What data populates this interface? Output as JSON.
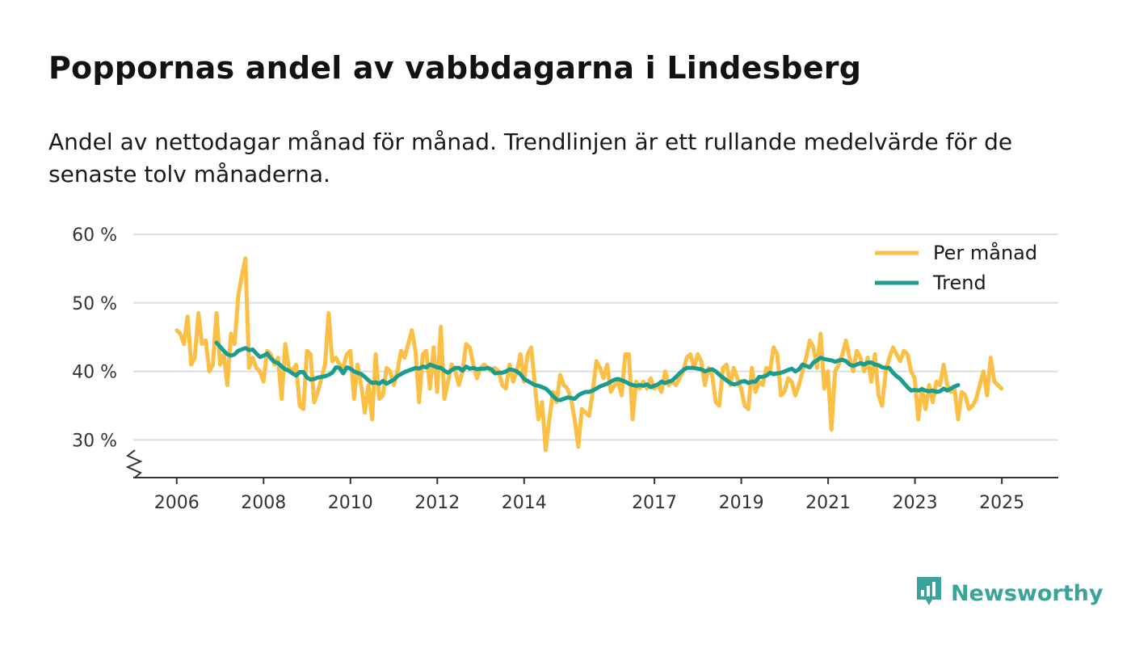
{
  "header": {
    "title": "Poppornas andel av vabbdagarna i Lindesberg",
    "subtitle": "Andel av nettodagar månad för månad. Trendlinjen är ett rullande medelvärde för de senaste tolv månaderna."
  },
  "brand": {
    "name": "Newsworthy",
    "icon": "newsworthy-logo-icon",
    "color": "#3aa39a"
  },
  "colors": {
    "monthly": "#fbbf45",
    "trend": "#1a9c8f",
    "grid": "#dddddd",
    "axis": "#333333"
  },
  "chart_data": {
    "type": "line",
    "title": "Poppornas andel av vabbdagarna i Lindesberg",
    "xlabel": "",
    "ylabel": "",
    "ylim": [
      24.5,
      60
    ],
    "xlim": [
      2005.0,
      2026.3
    ],
    "yticks": [
      30,
      40,
      50,
      60
    ],
    "ytick_labels": [
      "30 %",
      "40 %",
      "50 %",
      "60 %"
    ],
    "xticks": [
      2006,
      2008,
      2010,
      2012,
      2014,
      2017,
      2019,
      2021,
      2023,
      2025
    ],
    "xtick_labels": [
      "2006",
      "2008",
      "2010",
      "2012",
      "2014",
      "2017",
      "2019",
      "2021",
      "2023",
      "2025"
    ],
    "grid": true,
    "legend_position": "top-right",
    "series": [
      {
        "name": "Per månad",
        "x_start": 2006.0,
        "step": 0.0833,
        "values": [
          46.0,
          45.5,
          44.0,
          48.0,
          41.0,
          42.0,
          48.5,
          44.0,
          44.5,
          40.0,
          41.0,
          48.5,
          41.0,
          42.5,
          38.0,
          45.5,
          44.0,
          51.0,
          54.0,
          56.5,
          40.5,
          42.0,
          40.5,
          40.0,
          38.5,
          43.0,
          42.5,
          41.0,
          42.0,
          36.0,
          44.0,
          40.5,
          40.0,
          41.0,
          35.0,
          34.5,
          43.0,
          42.5,
          35.5,
          37.0,
          39.0,
          41.0,
          48.5,
          41.5,
          42.0,
          41.0,
          40.5,
          42.5,
          43.0,
          36.0,
          41.0,
          38.0,
          34.0,
          38.0,
          33.0,
          42.5,
          36.0,
          36.5,
          40.5,
          40.0,
          38.0,
          40.0,
          43.0,
          42.0,
          44.0,
          46.0,
          43.0,
          35.5,
          42.5,
          43.0,
          37.5,
          43.5,
          37.0,
          46.5,
          36.0,
          38.5,
          41.0,
          40.0,
          38.0,
          40.0,
          44.0,
          43.5,
          41.0,
          39.0,
          40.5,
          41.0,
          40.5,
          40.0,
          40.5,
          40.0,
          38.0,
          37.5,
          41.0,
          38.5,
          40.0,
          42.5,
          38.5,
          42.5,
          43.5,
          38.0,
          33.0,
          35.5,
          28.5,
          33.0,
          37.0,
          35.5,
          39.5,
          38.0,
          37.5,
          36.0,
          33.0,
          29.0,
          34.5,
          34.0,
          33.5,
          37.0,
          41.5,
          40.5,
          39.0,
          41.0,
          37.0,
          38.0,
          38.5,
          36.5,
          42.5,
          42.5,
          33.0,
          38.5,
          37.5,
          38.5,
          37.5,
          39.0,
          37.5,
          38.0,
          37.0,
          40.0,
          38.0,
          38.5,
          38.0,
          39.0,
          40.0,
          42.0,
          42.5,
          40.5,
          42.5,
          41.5,
          38.0,
          40.5,
          39.5,
          35.5,
          35.0,
          40.5,
          41.0,
          38.0,
          40.5,
          39.0,
          37.5,
          35.0,
          34.5,
          40.5,
          37.0,
          38.5,
          38.0,
          40.5,
          40.0,
          43.5,
          42.5,
          36.5,
          37.0,
          39.0,
          38.5,
          36.5,
          38.0,
          40.0,
          42.0,
          44.5,
          43.5,
          40.5,
          45.5,
          37.5,
          40.0,
          31.5,
          40.0,
          41.0,
          42.5,
          44.5,
          42.0,
          40.0,
          43.0,
          42.0,
          40.0,
          42.0,
          38.5,
          42.5,
          36.5,
          35.0,
          40.0,
          42.0,
          43.5,
          42.5,
          41.5,
          43.0,
          42.5,
          40.0,
          39.0,
          33.0,
          37.5,
          34.5,
          38.0,
          35.5,
          38.5,
          38.0,
          41.0,
          38.0,
          37.0,
          37.5,
          33.0,
          37.0,
          36.5,
          34.5,
          35.0,
          36.0,
          38.0,
          40.0,
          36.5,
          42.0,
          38.5,
          38.0,
          37.5
        ]
      },
      {
        "name": "Trend",
        "x_start": 2006.917,
        "step": 0.0833,
        "values": [
          44.2,
          43.6,
          43.0,
          42.5,
          42.3,
          42.5,
          43.0,
          43.2,
          43.4,
          43.1,
          43.2,
          42.6,
          42.1,
          42.3,
          42.6,
          41.9,
          41.4,
          41.2,
          40.7,
          40.3,
          40.1,
          39.7,
          39.4,
          39.9,
          39.9,
          39.1,
          38.8,
          38.9,
          39.1,
          39.2,
          39.3,
          39.5,
          39.8,
          40.6,
          40.5,
          39.7,
          40.6,
          40.4,
          40.0,
          39.8,
          39.6,
          39.2,
          38.7,
          38.3,
          38.4,
          38.2,
          38.6,
          38.2,
          38.5,
          38.8,
          39.3,
          39.6,
          39.9,
          40.1,
          40.3,
          40.5,
          40.4,
          40.7,
          40.6,
          41.0,
          40.8,
          40.6,
          40.5,
          40.1,
          39.8,
          40.2,
          40.5,
          40.5,
          40.1,
          40.7,
          40.4,
          40.5,
          40.3,
          40.4,
          40.4,
          40.5,
          40.3,
          39.7,
          39.8,
          39.8,
          40.0,
          40.3,
          40.2,
          40.0,
          39.6,
          38.9,
          38.6,
          38.3,
          38.0,
          37.9,
          37.7,
          37.5,
          37.0,
          36.4,
          35.9,
          35.8,
          36.0,
          36.2,
          36.1,
          36.0,
          36.5,
          36.8,
          37.0,
          37.0,
          37.2,
          37.5,
          37.8,
          38.0,
          38.2,
          38.5,
          38.8,
          38.9,
          38.7,
          38.5,
          38.2,
          38.0,
          37.9,
          38.0,
          37.9,
          38.1,
          37.7,
          37.9,
          38.1,
          38.5,
          38.3,
          38.5,
          38.7,
          39.2,
          39.7,
          40.2,
          40.5,
          40.5,
          40.5,
          40.4,
          40.3,
          40.0,
          40.2,
          40.3,
          40.0,
          39.5,
          39.1,
          38.7,
          38.3,
          38.1,
          38.2,
          38.5,
          38.6,
          38.3,
          38.5,
          38.5,
          39.2,
          39.2,
          39.4,
          39.8,
          39.6,
          39.7,
          39.8,
          40.0,
          40.2,
          40.4,
          40.0,
          40.3,
          41.0,
          40.8,
          40.6,
          41.3,
          41.6,
          42.0,
          41.8,
          41.7,
          41.6,
          41.4,
          41.6,
          41.7,
          41.5,
          41.0,
          40.8,
          41.0,
          41.2,
          41.0,
          41.3,
          41.3,
          41.0,
          40.9,
          40.6,
          40.5,
          40.5,
          39.8,
          39.3,
          38.9,
          38.3,
          37.7,
          37.2,
          37.3,
          37.2,
          37.4,
          37.2,
          37.1,
          37.2,
          37.0,
          37.1,
          37.5,
          37.2,
          37.5,
          37.8,
          38.0
        ]
      }
    ]
  }
}
